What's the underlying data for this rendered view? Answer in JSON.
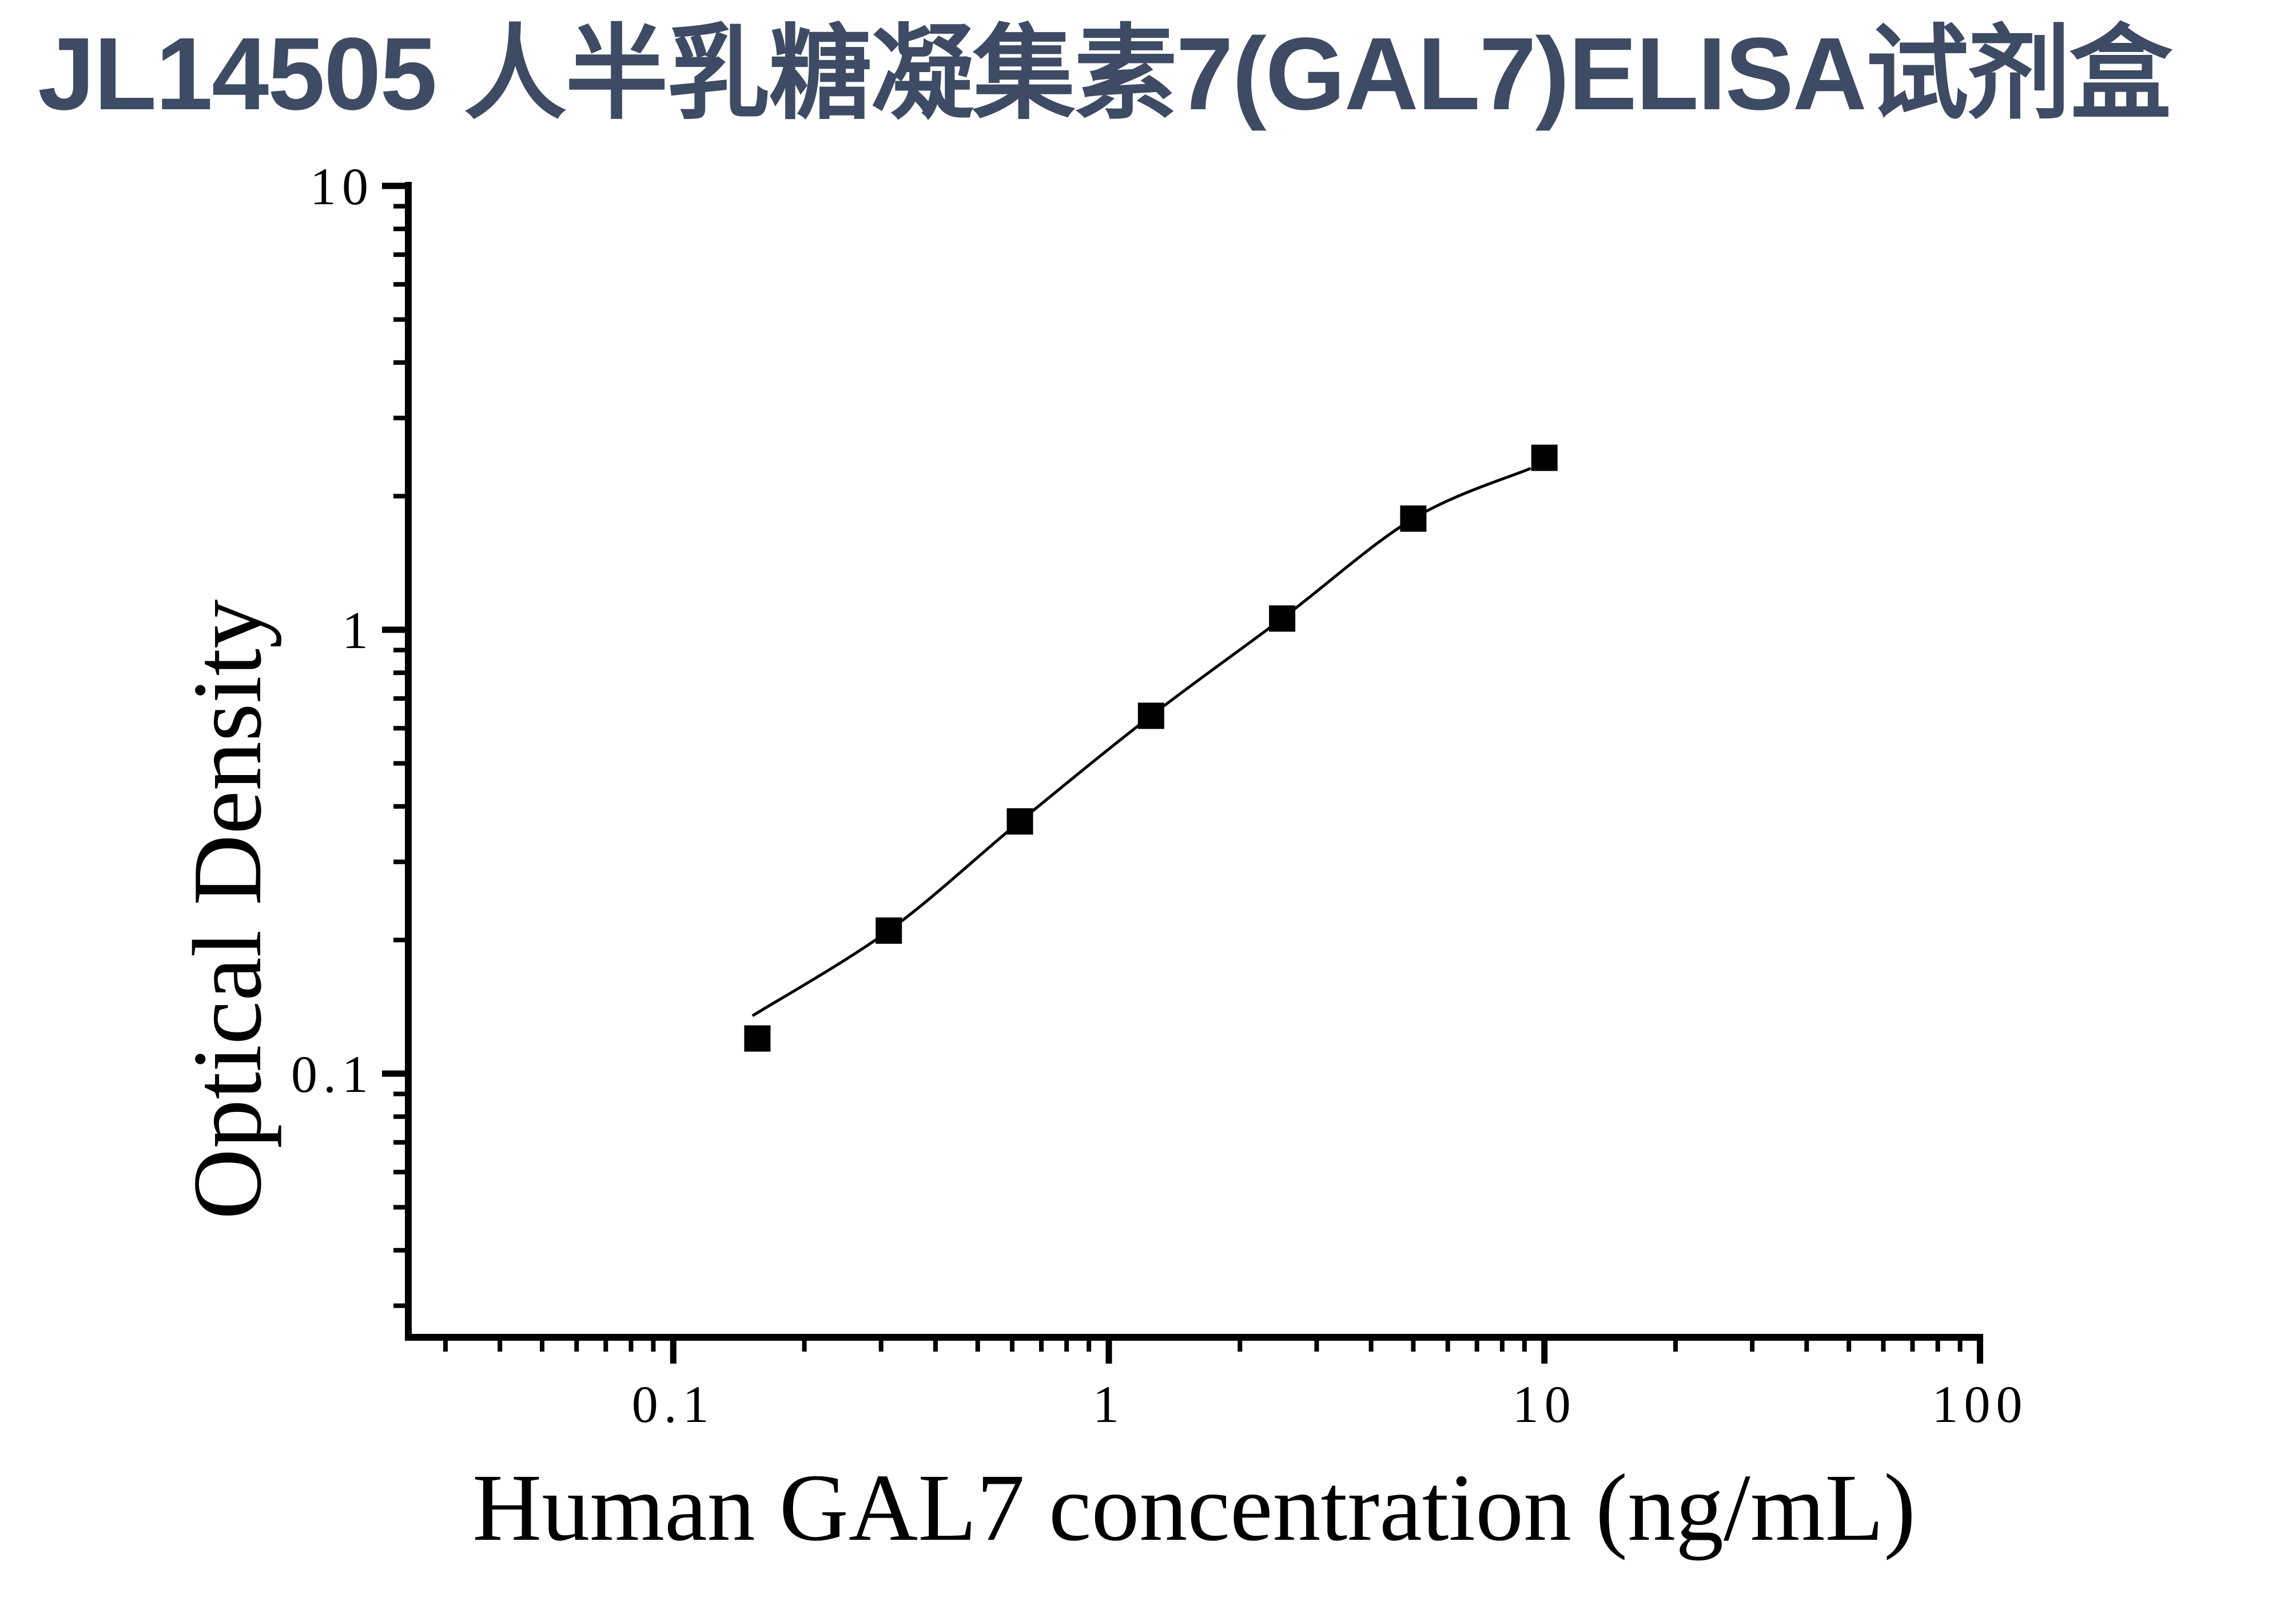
{
  "page": {
    "title": "JL14505 人半乳糖凝集素7(GAL7)ELISA试剂盒",
    "title_color": "#3E4B64",
    "background_color": "#FFFFFF"
  },
  "chart_data": {
    "type": "scatter",
    "subtype": "elisa-standard-curve",
    "xlabel": "Human GAL7 concentration (ng/mL)",
    "ylabel": "Optical Density",
    "x_scale": "log",
    "y_scale": "log",
    "xlim": [
      0.025,
      100
    ],
    "ylim": [
      0.03,
      10
    ],
    "grid": false,
    "legend": false,
    "marker": "square",
    "marker_color": "#000000",
    "line_color": "#000000",
    "series": [
      {
        "name": "standard-curve-points",
        "x": [
          0.156,
          0.3125,
          0.625,
          1.25,
          2.5,
          5,
          10
        ],
        "y": [
          0.12,
          0.21,
          0.37,
          0.64,
          1.06,
          1.78,
          2.44
        ]
      }
    ],
    "fit_curve_points": {
      "x": [
        0.152,
        0.3125,
        0.625,
        1.25,
        2.5,
        5,
        9.3
      ],
      "y": [
        0.135,
        0.21,
        0.37,
        0.64,
        1.06,
        1.78,
        2.31
      ]
    },
    "x_major_ticks": {
      "values": [
        0.1,
        1,
        10,
        100
      ],
      "labels": [
        "0.1",
        "1",
        "10",
        "100"
      ]
    },
    "y_major_ticks": {
      "values": [
        10,
        1,
        0.1
      ],
      "labels": [
        "10",
        "1",
        "0.1"
      ]
    },
    "x_minor_ticks": [
      0.03,
      0.04,
      0.05,
      0.06,
      0.07,
      0.08,
      0.09,
      0.2,
      0.3,
      0.4,
      0.5,
      0.6,
      0.7,
      0.8,
      0.9,
      2,
      3,
      4,
      5,
      6,
      7,
      8,
      9,
      20,
      30,
      40,
      50,
      60,
      70,
      80,
      90
    ],
    "y_minor_ticks": [
      9,
      8,
      7,
      6,
      5,
      4,
      3,
      2,
      0.9,
      0.8,
      0.7,
      0.6,
      0.5,
      0.4,
      0.3,
      0.2,
      0.09,
      0.08,
      0.07,
      0.06,
      0.05,
      0.04,
      0.03
    ]
  }
}
